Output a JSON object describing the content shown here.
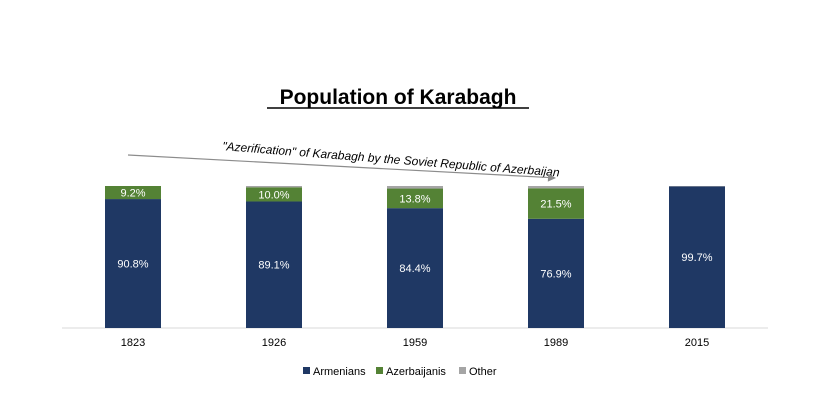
{
  "chart_data": {
    "type": "bar",
    "stacked": true,
    "stack_mode": "percent",
    "title": "Population of Karabagh",
    "xlabel": "",
    "ylabel": "",
    "ylim": [
      0,
      100
    ],
    "grid": false,
    "legend_position": "bottom",
    "categories": [
      "1823",
      "1926",
      "1959",
      "1989",
      "2015"
    ],
    "series": [
      {
        "name": "Armenians",
        "color": "#1f3864",
        "values": [
          90.8,
          89.1,
          84.4,
          76.9,
          99.7
        ],
        "labels": [
          "90.8%",
          "89.1%",
          "84.4%",
          "76.9%",
          "99.7%"
        ]
      },
      {
        "name": "Azerbaijanis",
        "color": "#548235",
        "values": [
          9.2,
          10.0,
          13.8,
          21.5,
          0
        ],
        "labels": [
          "9.2%",
          "10.0%",
          "13.8%",
          "21.5%",
          ""
        ]
      },
      {
        "name": "Other",
        "color": "#a5a5a5",
        "values": [
          0,
          0.9,
          1.8,
          1.6,
          0.3
        ],
        "labels": [
          "",
          "",
          "",
          "",
          ""
        ]
      }
    ],
    "annotation": {
      "text": "\"Azerification\" of Karabagh by the Soviet Republic of Azerbaijan",
      "arrow_from_category": "1823",
      "arrow_to_category": "1989"
    }
  }
}
